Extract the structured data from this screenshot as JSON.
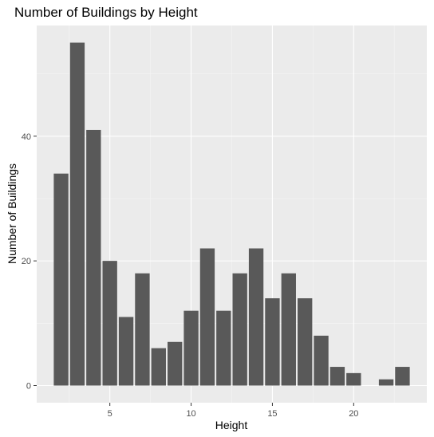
{
  "chart_data": {
    "type": "bar",
    "title": "Number of Buildings by Height",
    "xlabel": "Height",
    "ylabel": "Number of Buildings",
    "x": [
      2,
      3,
      4,
      5,
      6,
      7,
      8,
      9,
      10,
      11,
      12,
      13,
      14,
      15,
      16,
      17,
      18,
      19,
      20,
      22,
      23
    ],
    "values": [
      34,
      55,
      41,
      20,
      11,
      18,
      6,
      7,
      12,
      22,
      12,
      18,
      22,
      14,
      18,
      14,
      8,
      3,
      2,
      1,
      3
    ],
    "xlim": [
      0.5,
      24.5
    ],
    "ylim": [
      -2.75,
      57.75
    ],
    "x_ticks": [
      5,
      10,
      15,
      20
    ],
    "y_ticks": [
      0,
      20,
      40
    ],
    "grid": true,
    "colors": {
      "bar": "#595959",
      "panel": "#ebebeb",
      "grid_major": "#ffffff",
      "grid_minor": "#f5f5f5"
    }
  }
}
